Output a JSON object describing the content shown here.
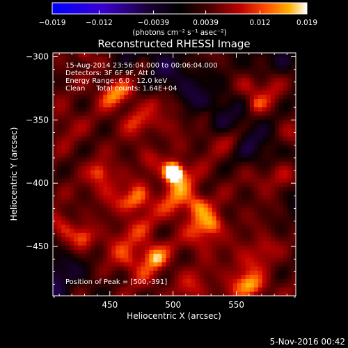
{
  "chart_data": {
    "type": "heatmap",
    "title": "Reconstructed RHESSI Image",
    "xlabel": "Heliocentric X (arcsec)",
    "ylabel": "Heliocentric Y (arcsec)",
    "xlim": [
      405,
      597
    ],
    "ylim": [
      -489,
      -297
    ],
    "xticks": [
      450,
      500,
      550
    ],
    "yticks": [
      -300,
      -350,
      -400,
      -450
    ],
    "colorbar": {
      "range": [
        -0.019,
        0.019
      ],
      "ticks": [
        "-0.019",
        "-0.012",
        "-0.0039",
        "0.0039",
        "0.012",
        "0.019"
      ],
      "units_text": "(photons cm⁻² s⁻¹ asec⁻²)",
      "colormap": "diverging blue-black-red-yellow-white"
    },
    "peak": {
      "x": 500,
      "y": -391
    },
    "annotations": [
      "15-Aug-2014 23:56:04.000 to 00:06:04.000",
      "Detectors: 3F 6F 9F, Att 0",
      "Energy Range: 6.0 - 12.0 keV",
      "Clean     Total counts: 1.64E+04"
    ],
    "peak_label": "Position of Peak = [500,-391]",
    "footer_date": "5-Nov-2016 00:42"
  }
}
